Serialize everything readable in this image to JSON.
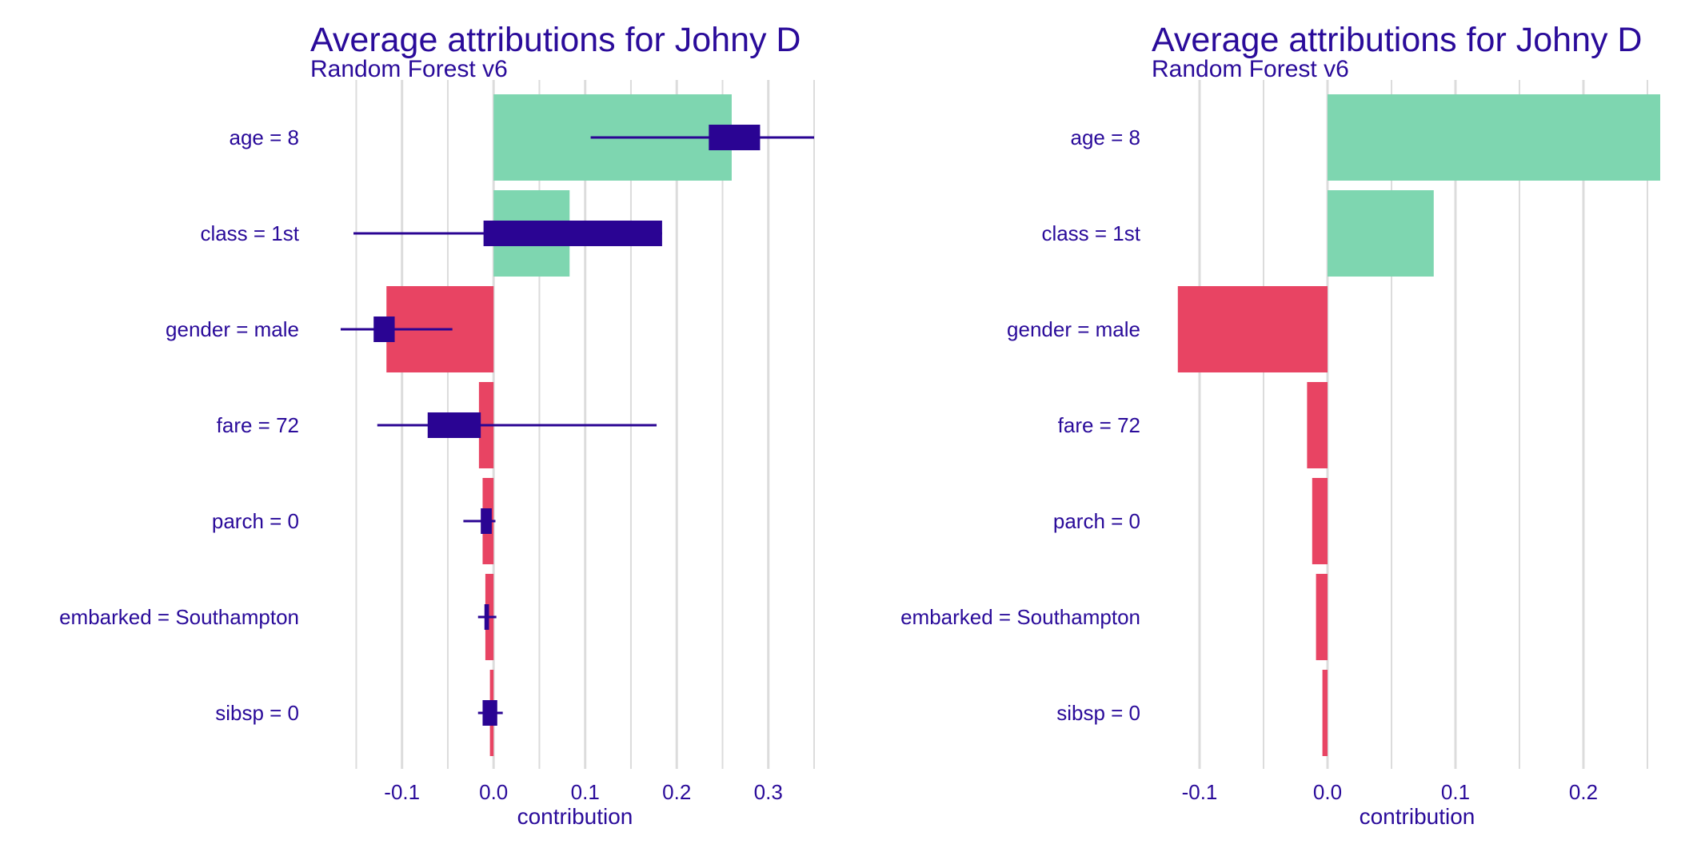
{
  "colors": {
    "text": "#2a0b9a",
    "positive": "#7ed6b0",
    "negative": "#e84463",
    "boxplot": "#2a0493",
    "grid": "#dcdcdc"
  },
  "panels": [
    {
      "title": "Average attributions for Johny D",
      "subtitle": "Random Forest v6",
      "xlabel": "contribution"
    },
    {
      "title": "Average attributions for Johny D",
      "subtitle": "Random Forest v6",
      "xlabel": "contribution"
    }
  ],
  "chart_data": [
    {
      "type": "bar",
      "orientation": "horizontal",
      "title": "Average attributions for Johny D",
      "subtitle": "Random Forest v6",
      "xlabel": "contribution",
      "categories": [
        "age = 8",
        "class = 1st",
        "gender = male",
        "fare = 72",
        "parch = 0",
        "embarked = Southampton",
        "sibsp = 0"
      ],
      "values": [
        0.26,
        0.083,
        -0.117,
        -0.016,
        -0.012,
        -0.009,
        -0.004
      ],
      "boxplots": [
        {
          "min": 0.106,
          "q1": 0.235,
          "q3": 0.291,
          "max": 0.35
        },
        {
          "min": -0.153,
          "q1": -0.011,
          "q3": 0.184,
          "max": 0.184
        },
        {
          "min": -0.167,
          "q1": -0.131,
          "q3": -0.108,
          "max": -0.045
        },
        {
          "min": -0.127,
          "q1": -0.072,
          "q3": -0.014,
          "max": 0.178
        },
        {
          "min": -0.033,
          "q1": -0.014,
          "q3": -0.002,
          "max": 0.002
        },
        {
          "min": -0.017,
          "q1": -0.01,
          "q3": -0.005,
          "max": 0.003
        },
        {
          "min": -0.017,
          "q1": -0.012,
          "q3": 0.004,
          "max": 0.01
        }
      ],
      "xlim": [
        -0.16,
        0.35
      ],
      "xticks": [
        -0.1,
        0.0,
        0.1,
        0.2,
        0.3
      ],
      "xtick_labels": [
        "-0.1",
        "0.0",
        "0.1",
        "0.2",
        "0.3"
      ],
      "grid": true,
      "legend": "none"
    },
    {
      "type": "bar",
      "orientation": "horizontal",
      "title": "Average attributions for Johny D",
      "subtitle": "Random Forest v6",
      "xlabel": "contribution",
      "categories": [
        "age = 8",
        "class = 1st",
        "gender = male",
        "fare = 72",
        "parch = 0",
        "embarked = Southampton",
        "sibsp = 0"
      ],
      "values": [
        0.26,
        0.083,
        -0.117,
        -0.016,
        -0.012,
        -0.009,
        -0.004
      ],
      "xlim": [
        -0.12,
        0.26
      ],
      "xticks": [
        -0.1,
        0.0,
        0.1,
        0.2
      ],
      "xtick_labels": [
        "-0.1",
        "0.0",
        "0.1",
        "0.2"
      ],
      "grid": true,
      "legend": "none"
    }
  ]
}
